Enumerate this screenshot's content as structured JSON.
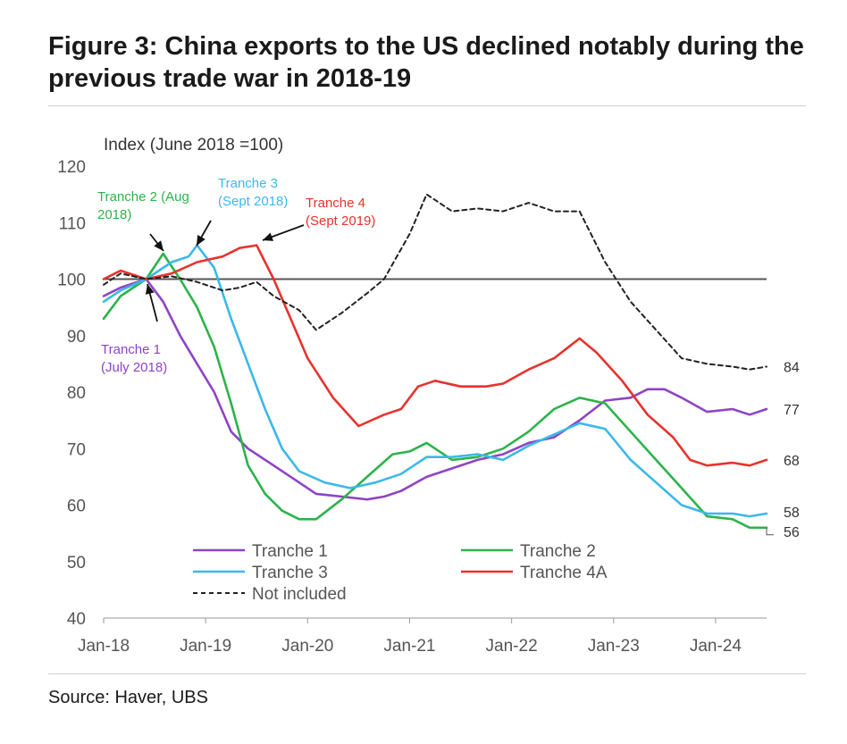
{
  "header": {
    "title": "Figure 3: China exports to the US declined notably during the previous trade war in 2018-19"
  },
  "footer": {
    "source": "Source: Haver, UBS"
  },
  "colors": {
    "tranche1": "#8e44c4",
    "tranche2": "#2db34a",
    "tranche3": "#3bb8ea",
    "tranche4A": "#e8322d",
    "not_included": "#222222",
    "reference": "#555555"
  },
  "chart_data": {
    "type": "line",
    "title": "",
    "ylabel": "Index (June 2018 =100)",
    "xlabel": "",
    "ylim": [
      40,
      120
    ],
    "yticks": [
      40,
      50,
      60,
      70,
      80,
      90,
      100,
      110,
      120
    ],
    "x_range": [
      "2018-01",
      "2024-07"
    ],
    "xticks": [
      {
        "date": "2018-01",
        "label": "Jan-18"
      },
      {
        "date": "2019-01",
        "label": "Jan-19"
      },
      {
        "date": "2020-01",
        "label": "Jan-20"
      },
      {
        "date": "2021-01",
        "label": "Jan-21"
      },
      {
        "date": "2022-01",
        "label": "Jan-22"
      },
      {
        "date": "2023-01",
        "label": "Jan-23"
      },
      {
        "date": "2024-01",
        "label": "Jan-24"
      }
    ],
    "reference_line": 100,
    "legend": {
      "placement": "bottom-left",
      "items": [
        {
          "key": "tranche1",
          "label": "Tranche 1"
        },
        {
          "key": "tranche2",
          "label": "Tranche 2"
        },
        {
          "key": "tranche3",
          "label": "Tranche 3"
        },
        {
          "key": "tranche4A",
          "label": "Tranche 4A"
        },
        {
          "key": "not_included",
          "label": "Not included"
        }
      ]
    },
    "series": [
      {
        "key": "tranche1",
        "name": "Tranche 1",
        "style": "solid",
        "end_label": "77",
        "points": [
          [
            "2018-01",
            97
          ],
          [
            "2018-03",
            98.5
          ],
          [
            "2018-06",
            100
          ],
          [
            "2018-08",
            96
          ],
          [
            "2018-10",
            90
          ],
          [
            "2018-12",
            85
          ],
          [
            "2019-02",
            80
          ],
          [
            "2019-04",
            73
          ],
          [
            "2019-06",
            70
          ],
          [
            "2019-09",
            67
          ],
          [
            "2019-12",
            64
          ],
          [
            "2020-02",
            62
          ],
          [
            "2020-05",
            61.5
          ],
          [
            "2020-08",
            61
          ],
          [
            "2020-10",
            61.5
          ],
          [
            "2020-12",
            62.5
          ],
          [
            "2021-03",
            65
          ],
          [
            "2021-06",
            66.5
          ],
          [
            "2021-09",
            68
          ],
          [
            "2021-12",
            69
          ],
          [
            "2022-03",
            71
          ],
          [
            "2022-06",
            72
          ],
          [
            "2022-09",
            75
          ],
          [
            "2022-12",
            78.5
          ],
          [
            "2023-03",
            79
          ],
          [
            "2023-05",
            80.5
          ],
          [
            "2023-07",
            80.5
          ],
          [
            "2023-09",
            79
          ],
          [
            "2023-12",
            76.5
          ],
          [
            "2024-03",
            77
          ],
          [
            "2024-05",
            76
          ],
          [
            "2024-07",
            77
          ]
        ]
      },
      {
        "key": "tranche2",
        "name": "Tranche 2",
        "style": "solid",
        "end_label": "56",
        "points": [
          [
            "2018-01",
            93
          ],
          [
            "2018-03",
            97
          ],
          [
            "2018-06",
            100
          ],
          [
            "2018-08",
            104.5
          ],
          [
            "2018-10",
            100
          ],
          [
            "2018-12",
            95
          ],
          [
            "2019-02",
            88
          ],
          [
            "2019-04",
            78
          ],
          [
            "2019-06",
            67
          ],
          [
            "2019-08",
            62
          ],
          [
            "2019-10",
            59
          ],
          [
            "2019-12",
            57.5
          ],
          [
            "2020-02",
            57.5
          ],
          [
            "2020-05",
            61
          ],
          [
            "2020-08",
            65
          ],
          [
            "2020-11",
            69
          ],
          [
            "2021-01",
            69.5
          ],
          [
            "2021-03",
            71
          ],
          [
            "2021-06",
            68
          ],
          [
            "2021-09",
            68.5
          ],
          [
            "2021-12",
            70
          ],
          [
            "2022-03",
            73
          ],
          [
            "2022-06",
            77
          ],
          [
            "2022-09",
            79
          ],
          [
            "2022-12",
            78
          ],
          [
            "2023-03",
            73
          ],
          [
            "2023-06",
            68
          ],
          [
            "2023-09",
            63
          ],
          [
            "2023-12",
            58
          ],
          [
            "2024-03",
            57.5
          ],
          [
            "2024-05",
            56
          ],
          [
            "2024-07",
            56
          ]
        ]
      },
      {
        "key": "tranche3",
        "name": "Tranche 3",
        "style": "solid",
        "end_label": "58",
        "points": [
          [
            "2018-01",
            96
          ],
          [
            "2018-03",
            98
          ],
          [
            "2018-06",
            100
          ],
          [
            "2018-09",
            103
          ],
          [
            "2018-11",
            104
          ],
          [
            "2018-12",
            106
          ],
          [
            "2019-02",
            102
          ],
          [
            "2019-04",
            93
          ],
          [
            "2019-06",
            85
          ],
          [
            "2019-08",
            77
          ],
          [
            "2019-10",
            70
          ],
          [
            "2019-12",
            66
          ],
          [
            "2020-03",
            64
          ],
          [
            "2020-06",
            63
          ],
          [
            "2020-09",
            64
          ],
          [
            "2020-12",
            65.5
          ],
          [
            "2021-03",
            68.5
          ],
          [
            "2021-06",
            68.5
          ],
          [
            "2021-09",
            69
          ],
          [
            "2021-12",
            68
          ],
          [
            "2022-03",
            70.5
          ],
          [
            "2022-06",
            72.5
          ],
          [
            "2022-09",
            74.5
          ],
          [
            "2022-12",
            73.5
          ],
          [
            "2023-03",
            68
          ],
          [
            "2023-06",
            64
          ],
          [
            "2023-09",
            60
          ],
          [
            "2023-12",
            58.5
          ],
          [
            "2024-03",
            58.5
          ],
          [
            "2024-05",
            58
          ],
          [
            "2024-07",
            58.5
          ]
        ]
      },
      {
        "key": "tranche4A",
        "name": "Tranche 4A",
        "style": "solid",
        "end_label": "68",
        "points": [
          [
            "2018-01",
            100
          ],
          [
            "2018-03",
            101.5
          ],
          [
            "2018-06",
            100
          ],
          [
            "2018-09",
            101
          ],
          [
            "2018-12",
            103
          ],
          [
            "2019-03",
            104
          ],
          [
            "2019-05",
            105.5
          ],
          [
            "2019-07",
            106
          ],
          [
            "2019-09",
            100
          ],
          [
            "2019-11",
            93
          ],
          [
            "2020-01",
            86
          ],
          [
            "2020-04",
            79
          ],
          [
            "2020-07",
            74
          ],
          [
            "2020-10",
            76
          ],
          [
            "2020-12",
            77
          ],
          [
            "2021-02",
            81
          ],
          [
            "2021-04",
            82
          ],
          [
            "2021-07",
            81
          ],
          [
            "2021-10",
            81
          ],
          [
            "2021-12",
            81.5
          ],
          [
            "2022-03",
            84
          ],
          [
            "2022-06",
            86
          ],
          [
            "2022-09",
            89.5
          ],
          [
            "2022-11",
            87
          ],
          [
            "2023-02",
            82
          ],
          [
            "2023-05",
            76
          ],
          [
            "2023-08",
            72
          ],
          [
            "2023-10",
            68
          ],
          [
            "2023-12",
            67
          ],
          [
            "2024-03",
            67.5
          ],
          [
            "2024-05",
            67
          ],
          [
            "2024-07",
            68
          ]
        ]
      },
      {
        "key": "not_included",
        "name": "Not included",
        "style": "dashed",
        "end_label": "84",
        "points": [
          [
            "2018-01",
            99
          ],
          [
            "2018-03",
            101
          ],
          [
            "2018-06",
            100
          ],
          [
            "2018-09",
            100.5
          ],
          [
            "2018-12",
            99.5
          ],
          [
            "2019-03",
            98
          ],
          [
            "2019-05",
            98.5
          ],
          [
            "2019-07",
            99.5
          ],
          [
            "2019-09",
            97
          ],
          [
            "2019-12",
            94.5
          ],
          [
            "2020-02",
            91
          ],
          [
            "2020-05",
            94
          ],
          [
            "2020-08",
            97.5
          ],
          [
            "2020-10",
            100
          ],
          [
            "2021-01",
            108
          ],
          [
            "2021-03",
            115
          ],
          [
            "2021-06",
            112
          ],
          [
            "2021-09",
            112.5
          ],
          [
            "2021-12",
            112
          ],
          [
            "2022-03",
            113.5
          ],
          [
            "2022-06",
            112
          ],
          [
            "2022-09",
            112
          ],
          [
            "2022-12",
            103
          ],
          [
            "2023-03",
            96
          ],
          [
            "2023-06",
            91
          ],
          [
            "2023-09",
            86
          ],
          [
            "2023-12",
            85
          ],
          [
            "2024-03",
            84.5
          ],
          [
            "2024-05",
            84
          ],
          [
            "2024-07",
            84.5
          ]
        ]
      }
    ],
    "annotations": [
      {
        "key": "tranche1",
        "lines": [
          "Tranche 1",
          "(July 2018)"
        ]
      },
      {
        "key": "tranche2",
        "lines": [
          "Tranche 2 (Aug",
          "2018)"
        ]
      },
      {
        "key": "tranche3",
        "lines": [
          "Tranche 3",
          "(Sept 2018)"
        ]
      },
      {
        "key": "tranche4A",
        "lines": [
          "Tranche 4",
          "(Sept 2019)"
        ]
      }
    ]
  }
}
